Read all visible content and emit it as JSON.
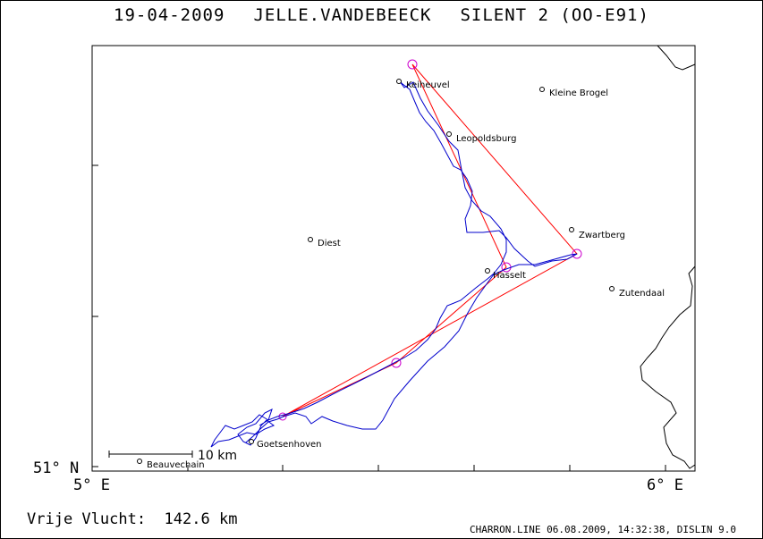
{
  "title": {
    "date": "19-04-2009",
    "pilot": "JELLE.VANDEBEECK",
    "glider": "SILENT 2 (OO-E91)"
  },
  "axes": {
    "lat_label": "51° N",
    "lon_left_label": "5° E",
    "lon_right_label": "6° E"
  },
  "places": [
    {
      "name": "Keiheuvel"
    },
    {
      "name": "Kleine Brogel"
    },
    {
      "name": "Leopoldsburg"
    },
    {
      "name": "Diest"
    },
    {
      "name": "Zwartberg"
    },
    {
      "name": "Hasselt"
    },
    {
      "name": "Zutendaal"
    },
    {
      "name": "Goetsenhoven"
    },
    {
      "name": "Beauvechain"
    }
  ],
  "scale_bar": {
    "label": "10 km"
  },
  "footer": {
    "flight_label": "Vrije Vlucht:",
    "distance": "142.6 km",
    "credit": "CHARRON.LINE 06.08.2009, 14:32:38, DISLIN 9.0"
  },
  "colors": {
    "track": "#0000cc",
    "task": "#ff0000",
    "turnpoint": "#cc00cc",
    "border": "#000000"
  }
}
